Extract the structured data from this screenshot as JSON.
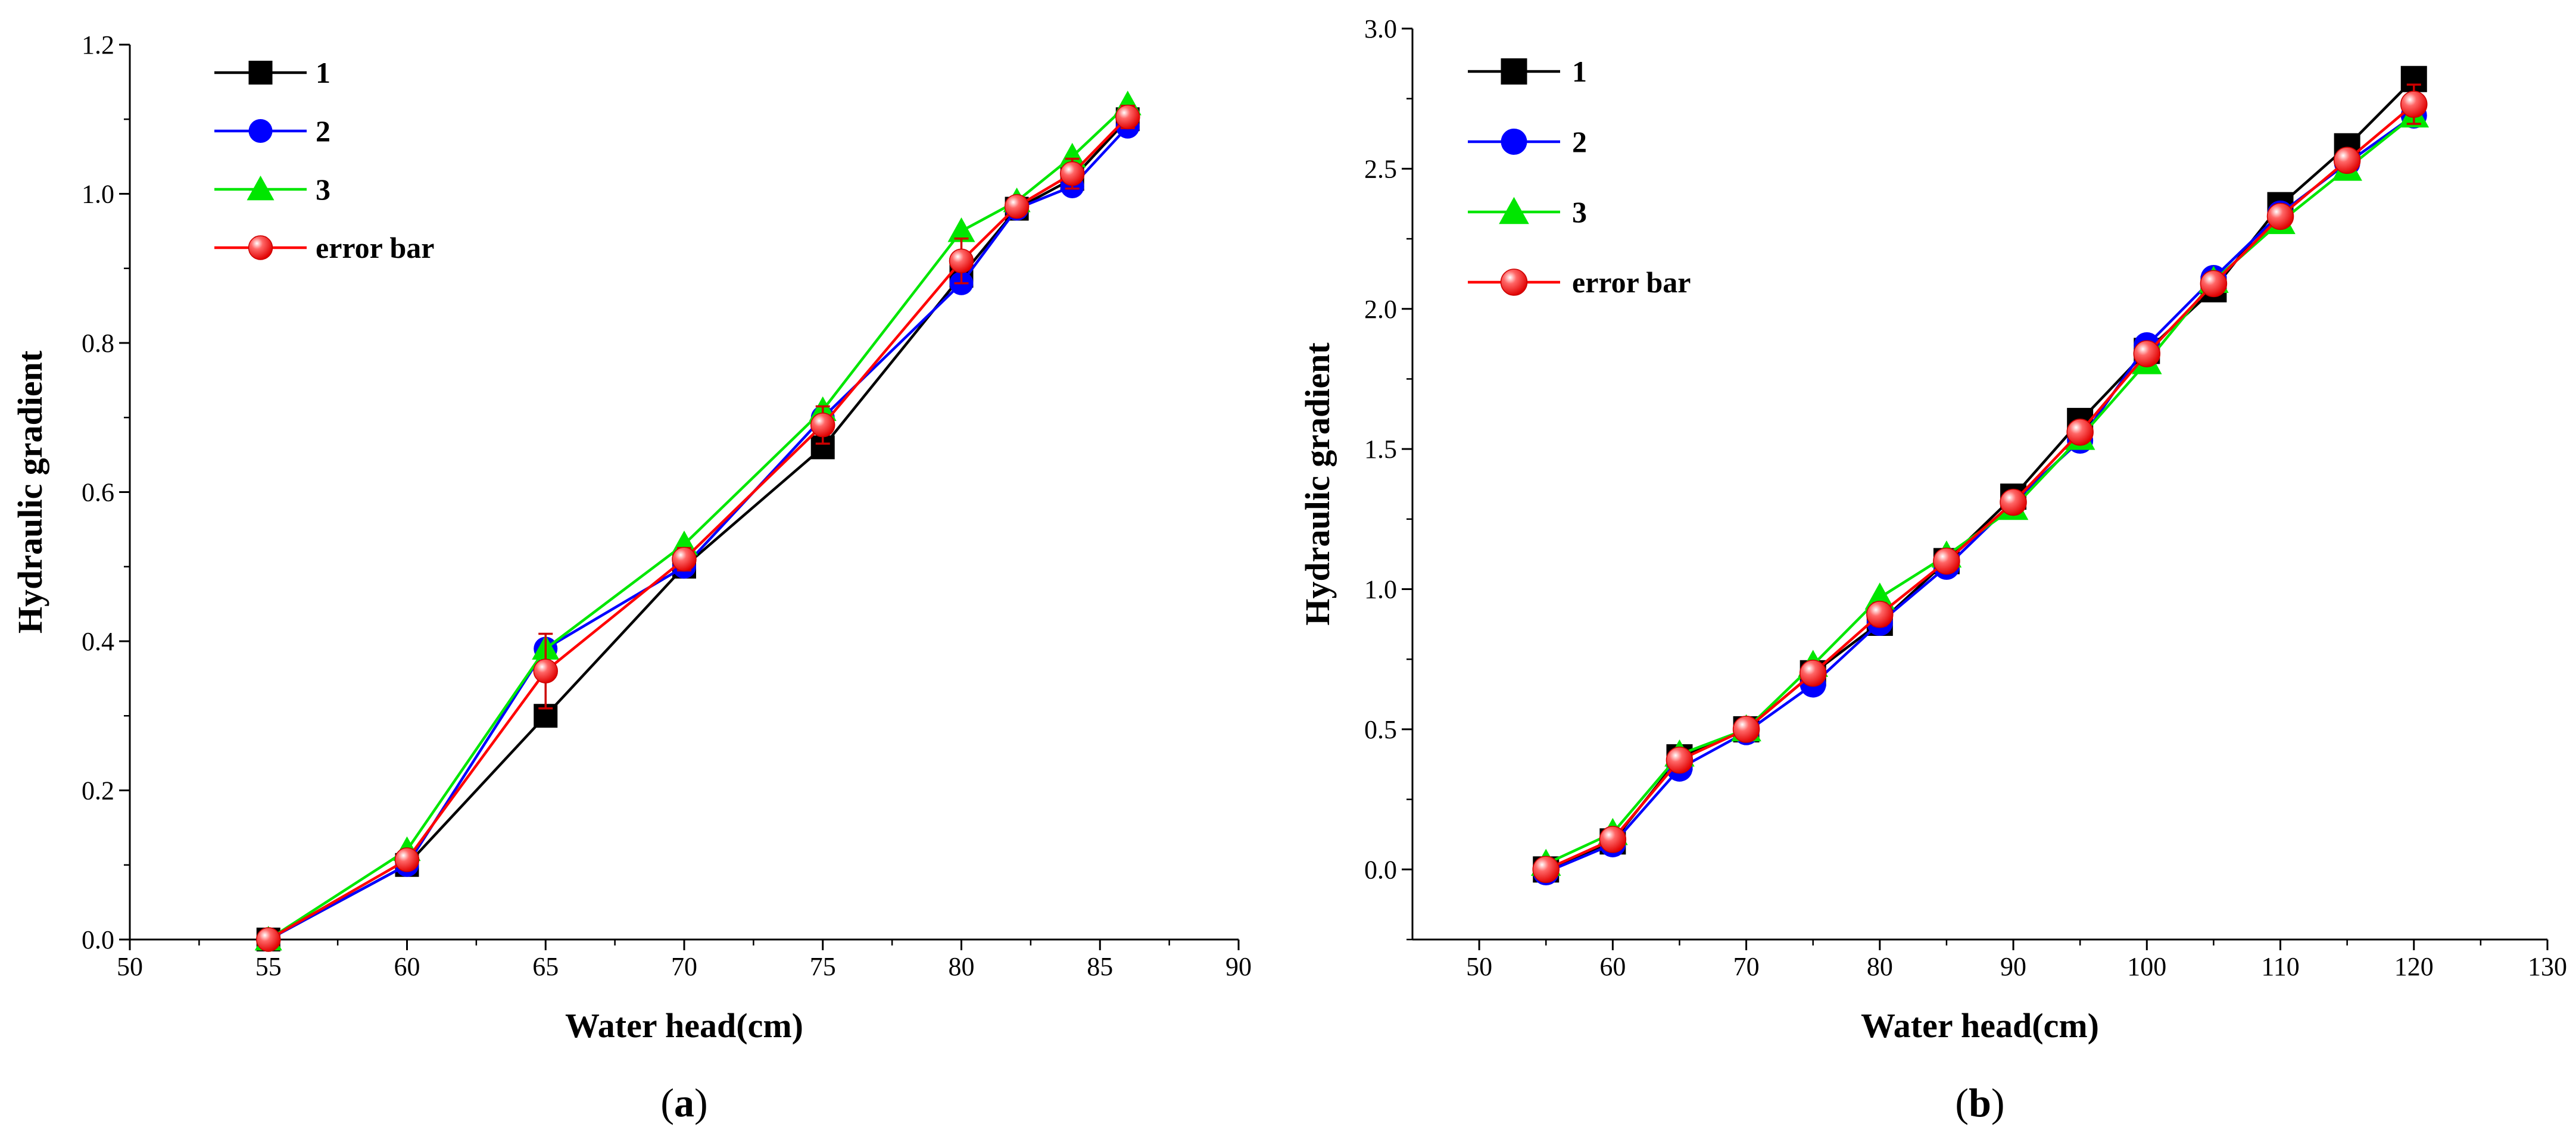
{
  "chart_data": [
    {
      "type": "line",
      "panel_label": "a",
      "title": "",
      "xlabel": "Water head(cm)",
      "ylabel": "Hydraulic gradient",
      "xlim": [
        50,
        90
      ],
      "ylim": [
        0,
        1.2
      ],
      "xticks": [
        50,
        55,
        60,
        65,
        70,
        75,
        80,
        85,
        90
      ],
      "yticks": [
        0.0,
        0.2,
        0.4,
        0.6,
        0.8,
        1.0,
        1.2
      ],
      "xtick_labels": [
        "50",
        "55",
        "60",
        "65",
        "70",
        "75",
        "80",
        "85",
        "90"
      ],
      "ytick_labels": [
        "0.0",
        "0.2",
        "0.4",
        "0.6",
        "0.8",
        "1.0",
        "1.2"
      ],
      "legend_position": "top-left",
      "x": [
        55,
        60,
        65,
        70,
        75,
        80,
        82,
        84,
        86
      ],
      "series": [
        {
          "name": "1",
          "color": "#000000",
          "marker": "square",
          "values": [
            0.0,
            0.1,
            0.3,
            0.5,
            0.66,
            0.89,
            0.98,
            1.02,
            1.1
          ]
        },
        {
          "name": "2",
          "color": "#0000ff",
          "marker": "circle",
          "values": [
            0.0,
            0.1,
            0.39,
            0.5,
            0.7,
            0.88,
            0.98,
            1.01,
            1.09
          ]
        },
        {
          "name": "3",
          "color": "#00e600",
          "marker": "triangle",
          "values": [
            0.0,
            0.12,
            0.39,
            0.53,
            0.71,
            0.95,
            0.99,
            1.05,
            1.12
          ]
        },
        {
          "name": "error bar",
          "color": "#ff0000",
          "marker": "ball",
          "values": [
            0.0,
            0.107,
            0.36,
            0.51,
            0.69,
            0.91,
            0.983,
            1.027,
            1.103
          ],
          "errors": [
            0.0,
            0.01,
            0.05,
            0.015,
            0.025,
            0.03,
            0.005,
            0.02,
            0.015
          ]
        }
      ]
    },
    {
      "type": "line",
      "panel_label": "b",
      "title": "",
      "xlabel": "Water head(cm)",
      "ylabel": "Hydraulic gradient",
      "xlim": [
        45,
        130
      ],
      "ylim": [
        -0.25,
        3.0
      ],
      "xticks": [
        50,
        60,
        70,
        80,
        90,
        100,
        110,
        120,
        130
      ],
      "yticks": [
        0.0,
        0.5,
        1.0,
        1.5,
        2.0,
        2.5,
        3.0
      ],
      "xtick_labels": [
        "50",
        "60",
        "70",
        "80",
        "90",
        "100",
        "110",
        "120",
        "130"
      ],
      "ytick_labels": [
        "0.0",
        "0.5",
        "1.0",
        "1.5",
        "2.0",
        "2.5",
        "3.0"
      ],
      "legend_position": "top-left",
      "x": [
        55,
        60,
        65,
        70,
        75,
        80,
        85,
        90,
        95,
        100,
        105,
        110,
        115,
        120
      ],
      "series": [
        {
          "name": "1",
          "color": "#000000",
          "marker": "square",
          "values": [
            0.0,
            0.1,
            0.4,
            0.5,
            0.7,
            0.88,
            1.1,
            1.33,
            1.6,
            1.85,
            2.07,
            2.37,
            2.58,
            2.82
          ]
        },
        {
          "name": "2",
          "color": "#0000ff",
          "marker": "circle",
          "values": [
            -0.01,
            0.09,
            0.36,
            0.49,
            0.66,
            0.88,
            1.08,
            1.31,
            1.53,
            1.87,
            2.11,
            2.34,
            2.52,
            2.69
          ]
        },
        {
          "name": "3",
          "color": "#00e600",
          "marker": "triangle",
          "values": [
            0.02,
            0.13,
            0.41,
            0.5,
            0.73,
            0.97,
            1.12,
            1.29,
            1.54,
            1.81,
            2.1,
            2.31,
            2.5,
            2.69
          ]
        },
        {
          "name": "error bar",
          "color": "#ff0000",
          "marker": "ball",
          "values": [
            0.0,
            0.107,
            0.39,
            0.5,
            0.7,
            0.91,
            1.1,
            1.31,
            1.56,
            1.84,
            2.09,
            2.33,
            2.53,
            2.73
          ],
          "errors": [
            0.0,
            0.01,
            0.02,
            0.005,
            0.02,
            0.04,
            0.015,
            0.02,
            0.03,
            0.02,
            0.015,
            0.02,
            0.03,
            0.07
          ]
        }
      ]
    }
  ]
}
